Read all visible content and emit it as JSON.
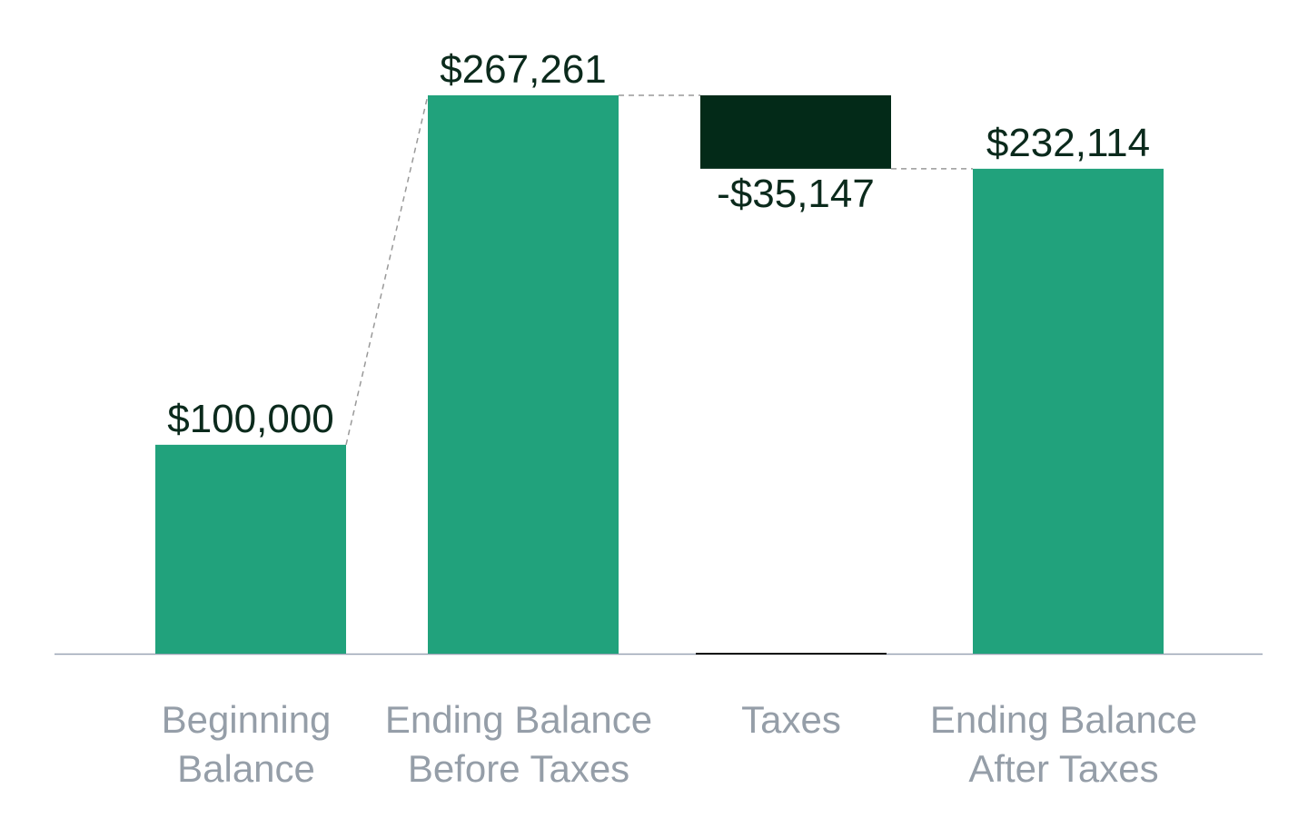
{
  "chart_data": {
    "type": "waterfall",
    "categories": [
      [
        "Beginning",
        "Balance"
      ],
      [
        "Ending Balance",
        "Before Taxes"
      ],
      [
        "Taxes"
      ],
      [
        "Ending Balance",
        "After Taxes"
      ]
    ],
    "values": [
      100000,
      267261,
      -35147,
      232114
    ],
    "value_labels": [
      "$100,000",
      "$267,261",
      "-$35,147",
      "$232,114"
    ],
    "measures": [
      "absolute",
      "absolute",
      "relative",
      "absolute"
    ],
    "colors": {
      "increase": "#21a27c",
      "total": "#21a27c",
      "decrease": "#032a18"
    }
  }
}
